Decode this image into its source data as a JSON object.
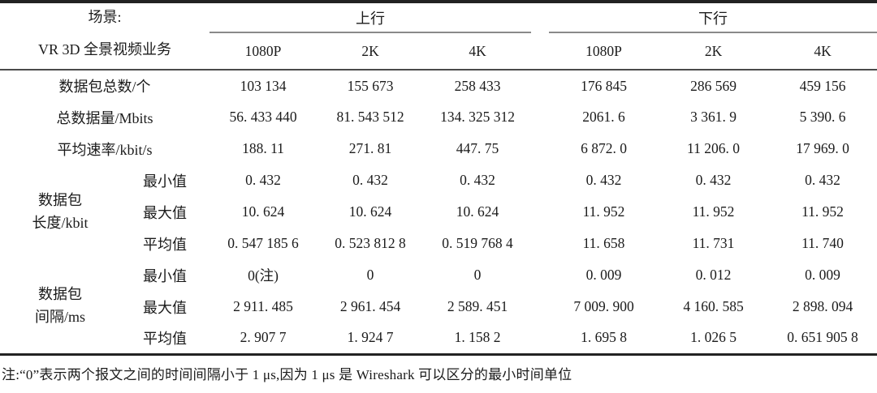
{
  "table": {
    "header": {
      "scenario_line1": "场景:",
      "scenario_line2": "VR 3D 全景视频业务",
      "uplink_label": "上行",
      "downlink_label": "下行",
      "resolution_labels": [
        "1080P",
        "2K",
        "4K",
        "1080P",
        "2K",
        "4K"
      ]
    },
    "body_rows": [
      {
        "label": "数据包总数/个",
        "values": [
          "103 134",
          "155 673",
          "258 433",
          "176 845",
          "286 569",
          "459 156"
        ]
      },
      {
        "label": "总数据量/Mbits",
        "values": [
          "56. 433 440",
          "81. 543 512",
          "134. 325 312",
          "2061. 6",
          "3 361. 9",
          "5 390. 6"
        ]
      },
      {
        "label": "平均速率/kbit/s",
        "values": [
          "188. 11",
          "271. 81",
          "447. 75",
          "6 872. 0",
          "11 206. 0",
          "17 969. 0"
        ]
      },
      {
        "group_label_lines": [
          "数据包",
          "长度/kbit"
        ],
        "sub_rows": [
          {
            "label": "最小值",
            "values": [
              "0. 432",
              "0. 432",
              "0. 432",
              "0. 432",
              "0. 432",
              "0. 432"
            ]
          },
          {
            "label": "最大值",
            "values": [
              "10. 624",
              "10. 624",
              "10. 624",
              "11. 952",
              "11. 952",
              "11. 952"
            ]
          },
          {
            "label": "平均值",
            "values": [
              "0. 547 185 6",
              "0. 523 812 8",
              "0. 519 768 4",
              "11. 658",
              "11. 731",
              "11. 740"
            ]
          }
        ]
      },
      {
        "group_label_lines": [
          "数据包",
          "间隔/ms"
        ],
        "sub_rows": [
          {
            "label": "最小值",
            "values": [
              "0(注)",
              "0",
              "0",
              "0. 009",
              "0. 012",
              "0. 009"
            ]
          },
          {
            "label": "最大值",
            "values": [
              "2 911. 485",
              "2 961. 454",
              "2 589. 451",
              "7 009. 900",
              "4 160. 585",
              "2 898. 094"
            ]
          },
          {
            "label": "平均值",
            "values": [
              "2. 907 7",
              "1. 924 7",
              "1. 158 2",
              "1. 695 8",
              "1. 026 5",
              "0. 651 905 8"
            ]
          }
        ]
      }
    ],
    "note": "注:“0”表示两个报文之间的时间间隔小于 1 μs,因为 1 μs 是 Wireshark 可以区分的最小时间单位"
  }
}
